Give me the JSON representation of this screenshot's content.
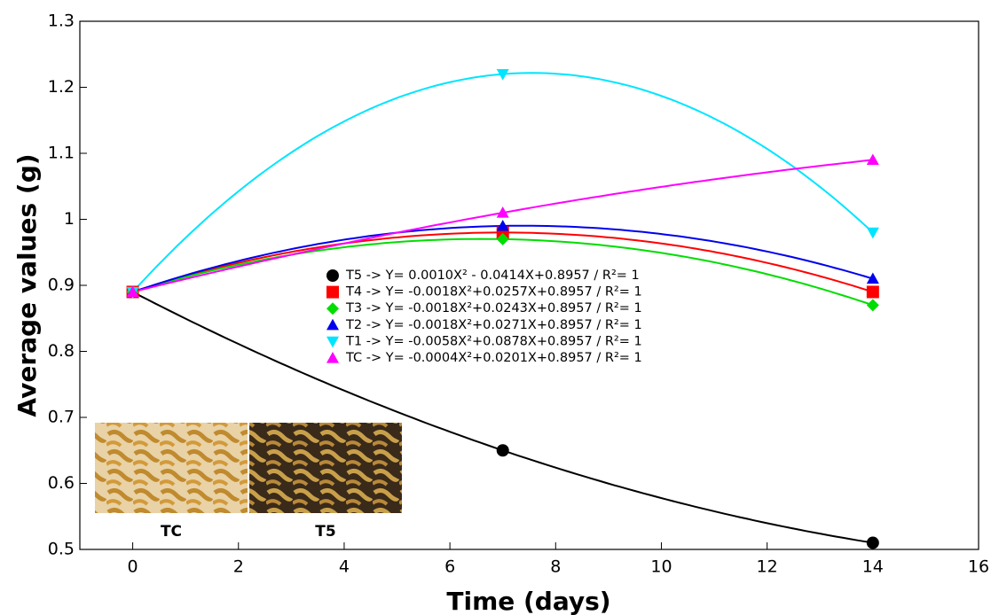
{
  "chart_data": {
    "type": "scatter",
    "x_label": "Time (days)",
    "y_label": "Average values (g)",
    "x": [
      0,
      7,
      14
    ],
    "series": [
      {
        "name": "T5 -> Y= 0.0010X² - 0.0414X+0.8957 / R²= 1",
        "color": "#000000",
        "marker": "circle",
        "values": [
          0.89,
          0.65,
          0.51
        ]
      },
      {
        "name": "T4 -> Y= -0.0018X²+0.0257X+0.8957 / R²= 1",
        "color": "#ff0000",
        "marker": "square",
        "values": [
          0.89,
          0.98,
          0.89
        ]
      },
      {
        "name": "T3 -> Y= -0.0018X²+0.0243X+0.8957 / R²= 1",
        "color": "#00dd00",
        "marker": "diamond",
        "values": [
          0.89,
          0.97,
          0.87
        ]
      },
      {
        "name": "T2 -> Y= -0.0018X²+0.0271X+0.8957 / R²= 1",
        "color": "#0000ee",
        "marker": "triangle-up",
        "values": [
          0.89,
          0.99,
          0.91
        ]
      },
      {
        "name": "T1 -> Y= -0.0058X²+0.0878X+0.8957 / R²= 1",
        "color": "#00e5ff",
        "marker": "triangle-down",
        "values": [
          0.89,
          1.22,
          0.98
        ]
      },
      {
        "name": "TC -> Y= -0.0004X²+0.0201X+0.8957 / R²= 1",
        "color": "#ff00ff",
        "marker": "triangle-up",
        "values": [
          0.89,
          1.01,
          1.09
        ]
      }
    ],
    "xlim": [
      -1,
      16
    ],
    "xticks": [
      0,
      2,
      4,
      6,
      8,
      10,
      12,
      14,
      16
    ],
    "ylim": [
      0.5,
      1.3
    ],
    "yticks": [
      0.5,
      0.6,
      0.7,
      0.8,
      0.9,
      1,
      1.1,
      1.2,
      1.3
    ],
    "inset_labels": [
      "TC",
      "T5"
    ]
  }
}
